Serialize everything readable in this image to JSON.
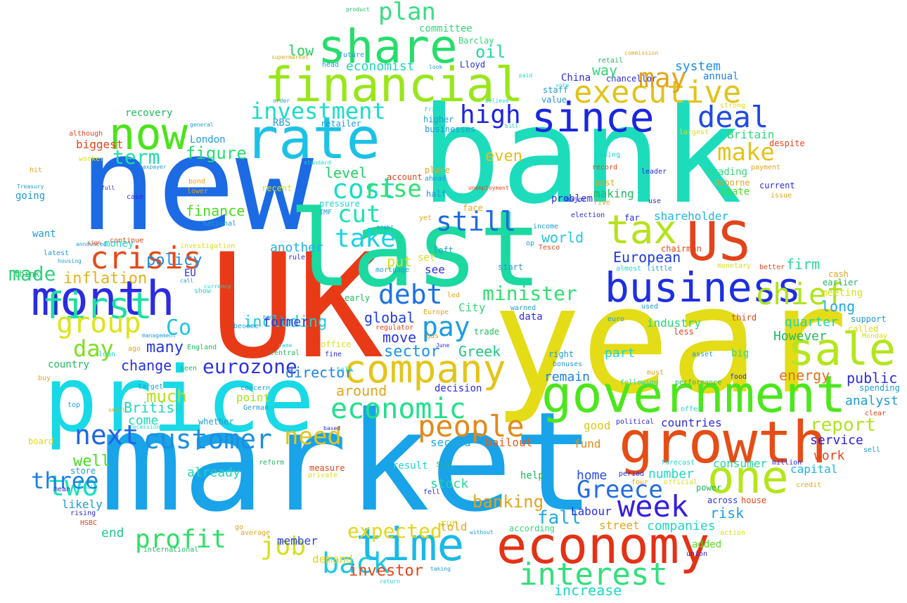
{
  "words": [
    {
      "text": "bank",
      "color": "#1cdcbc"
    },
    {
      "text": "year",
      "color": "#e3dc16"
    },
    {
      "text": "market",
      "color": "#19a3e8"
    },
    {
      "text": "new",
      "color": "#1c6ae4"
    },
    {
      "text": "UK",
      "color": "#e83a17"
    },
    {
      "text": "price",
      "color": "#19d9e6"
    },
    {
      "text": "last",
      "color": "#1bd9a0"
    },
    {
      "text": "government",
      "color": "#4de61d"
    },
    {
      "text": "growth",
      "color": "#e54d17"
    },
    {
      "text": "economy",
      "color": "#e33217"
    },
    {
      "text": "company",
      "color": "#e3c51a"
    },
    {
      "text": "financial",
      "color": "#9ae61b"
    },
    {
      "text": "business",
      "color": "#1d2fdf"
    },
    {
      "text": "month",
      "color": "#2b2cdf"
    },
    {
      "text": "rate",
      "color": "#1cc1e6"
    },
    {
      "text": "share",
      "color": "#27dd6c"
    },
    {
      "text": "since",
      "color": "#1b27dc"
    },
    {
      "text": "now",
      "color": "#4ce31b"
    },
    {
      "text": "one",
      "color": "#b4e619"
    },
    {
      "text": "time",
      "color": "#1ab9e6"
    },
    {
      "text": "sale",
      "color": "#b4e61b"
    },
    {
      "text": "US",
      "color": "#e3431a"
    },
    {
      "text": "tax",
      "color": "#b6e21b"
    },
    {
      "text": "executive",
      "color": "#e3c21a"
    },
    {
      "text": "interest",
      "color": "#31e07b"
    },
    {
      "text": "customer",
      "color": "#1c8fdf"
    },
    {
      "text": "week",
      "color": "#3520df"
    },
    {
      "text": "people",
      "color": "#e28a1c"
    },
    {
      "text": "economic",
      "color": "#21e08a"
    },
    {
      "text": "first",
      "color": "#1ddfa3"
    },
    {
      "text": "crisis",
      "color": "#e34a1a"
    },
    {
      "text": "deal",
      "color": "#1f4ae3"
    },
    {
      "text": "Greece",
      "color": "#1f6ce3"
    },
    {
      "text": "profit",
      "color": "#30dd67"
    },
    {
      "text": "investment",
      "color": "#1cddc5"
    },
    {
      "text": "chief",
      "color": "#ace41a"
    },
    {
      "text": "group",
      "color": "#dde41a"
    },
    {
      "text": "debt",
      "color": "#1b73e3"
    },
    {
      "text": "two",
      "color": "#1ae2c0"
    },
    {
      "text": "next",
      "color": "#1f66e6"
    },
    {
      "text": "eurozone",
      "color": "#2d35df"
    },
    {
      "text": "cost",
      "color": "#1bdcc8"
    },
    {
      "text": "pay",
      "color": "#1a9ce3"
    },
    {
      "text": "need",
      "color": "#e3c51b"
    },
    {
      "text": "plan",
      "color": "#3bdc84"
    },
    {
      "text": "high",
      "color": "#1e23df"
    },
    {
      "text": "make",
      "color": "#e4c31a"
    },
    {
      "text": "take",
      "color": "#1ad2e3"
    },
    {
      "text": "may",
      "color": "#e3a51b"
    },
    {
      "text": "back",
      "color": "#1fc6e3"
    },
    {
      "text": "still",
      "color": "#1f68e3"
    },
    {
      "text": "cut",
      "color": "#1ae2b2"
    },
    {
      "text": "rise",
      "color": "#31df72"
    },
    {
      "text": "day",
      "color": "#7ddf1d"
    },
    {
      "text": "job",
      "color": "#d8e01b"
    },
    {
      "text": "Co",
      "color": "#1cc5e1"
    },
    {
      "text": "report",
      "color": "#afe31b"
    },
    {
      "text": "banking",
      "color": "#e3a31b"
    },
    {
      "text": "term",
      "color": "#1ae2a8"
    },
    {
      "text": "minister",
      "color": "#33df6e"
    },
    {
      "text": "three",
      "color": "#1d7fe5"
    },
    {
      "text": "figure",
      "color": "#25df75"
    },
    {
      "text": "well",
      "color": "#45df1d"
    },
    {
      "text": "expected",
      "color": "#e3d61a"
    },
    {
      "text": "much",
      "color": "#b6e01b"
    },
    {
      "text": "fall",
      "color": "#1fa9e3"
    },
    {
      "text": "world",
      "color": "#23c7e1"
    },
    {
      "text": "made",
      "color": "#2dd27c"
    },
    {
      "text": "oil",
      "color": "#1fd7a5"
    },
    {
      "text": "low",
      "color": "#1fcf5e"
    },
    {
      "text": "economist",
      "color": "#1ad8b7"
    },
    {
      "text": "even",
      "color": "#e3be1b"
    },
    {
      "text": "inflation",
      "color": "#e3b31b"
    },
    {
      "text": "sector",
      "color": "#1a93e3"
    },
    {
      "text": "change",
      "color": "#2431df"
    },
    {
      "text": "many",
      "color": "#2538df"
    },
    {
      "text": "British",
      "color": "#21d3c0"
    },
    {
      "text": "level",
      "color": "#1fcf5e"
    },
    {
      "text": "director",
      "color": "#1c84df"
    },
    {
      "text": "global",
      "color": "#1f3edf"
    },
    {
      "text": "move",
      "color": "#2e36df"
    },
    {
      "text": "put",
      "color": "#d6e01b"
    },
    {
      "text": "Greek",
      "color": "#1fc680"
    },
    {
      "text": "including",
      "color": "#1fcbd9"
    },
    {
      "text": "policy",
      "color": "#1f8fe3"
    },
    {
      "text": "finance",
      "color": "#4ade1c"
    },
    {
      "text": "another",
      "color": "#1fb1e3"
    },
    {
      "text": "former",
      "color": "#2a3bdf"
    },
    {
      "text": "around",
      "color": "#e3a51b"
    },
    {
      "text": "second",
      "color": "#1fa8e1"
    },
    {
      "text": "bailout",
      "color": "#e35f1a"
    },
    {
      "text": "remain",
      "color": "#1f7fe3"
    },
    {
      "text": "European",
      "color": "#1f3bdf"
    },
    {
      "text": "firm",
      "color": "#26d8a0"
    },
    {
      "text": "long",
      "color": "#1fa8e3"
    },
    {
      "text": "quarter",
      "color": "#1fd6a6"
    },
    {
      "text": "However",
      "color": "#1fba5f"
    },
    {
      "text": "industry",
      "color": "#23d776"
    },
    {
      "text": "energy",
      "color": "#e36f1a"
    },
    {
      "text": "public",
      "color": "#2b2bdf"
    },
    {
      "text": "analyst",
      "color": "#1f9bd6"
    },
    {
      "text": "countries",
      "color": "#2a2adf"
    },
    {
      "text": "service",
      "color": "#2d20df"
    },
    {
      "text": "work",
      "color": "#e3451a"
    },
    {
      "text": "capital",
      "color": "#1fb4e3"
    },
    {
      "text": "consumer",
      "color": "#1fd69e"
    },
    {
      "text": "number",
      "color": "#1fd6cb"
    },
    {
      "text": "home",
      "color": "#2a4edf"
    },
    {
      "text": "Labour",
      "color": "#2c2ddf"
    },
    {
      "text": "risk",
      "color": "#1f9de3"
    },
    {
      "text": "companies",
      "color": "#1fd6c4"
    },
    {
      "text": "street",
      "color": "#e3a51b"
    },
    {
      "text": "added",
      "color": "#5bdf1d"
    },
    {
      "text": "fund",
      "color": "#e38a1b"
    },
    {
      "text": "good",
      "color": "#dfc51b"
    },
    {
      "text": "point",
      "color": "#a7de1d"
    },
    {
      "text": "come",
      "color": "#1fd6b8"
    },
    {
      "text": "stock",
      "color": "#1fd6a0"
    },
    {
      "text": "end",
      "color": "#1fca88"
    },
    {
      "text": "member",
      "color": "#2341df"
    },
    {
      "text": "investor",
      "color": "#e3451a"
    },
    {
      "text": "increase",
      "color": "#1ad8c3"
    },
    {
      "text": "demand",
      "color": "#e3d61a"
    },
    {
      "text": "system",
      "color": "#1f8fe3"
    },
    {
      "text": "annual",
      "color": "#1f7fe3"
    },
    {
      "text": "Britain",
      "color": "#33d678"
    },
    {
      "text": "trading",
      "color": "#33d678"
    },
    {
      "text": "Osborne",
      "color": "#e3a51b"
    },
    {
      "text": "state",
      "color": "#4ade1c"
    },
    {
      "text": "shareholder",
      "color": "#1fb4e3"
    },
    {
      "text": "chairman",
      "color": "#e3451a"
    },
    {
      "text": "earlier",
      "color": "#1fba5f"
    },
    {
      "text": "meeting",
      "color": "#d6e01b"
    },
    {
      "text": "support",
      "color": "#1f9bd6"
    },
    {
      "text": "called",
      "color": "#d6e01b"
    },
    {
      "text": "Monday",
      "color": "#d6e01b"
    },
    {
      "text": "spending",
      "color": "#1f9bd6"
    },
    {
      "text": "clear",
      "color": "#e3451a"
    },
    {
      "text": "sell",
      "color": "#1f9bd6"
    },
    {
      "text": "million",
      "color": "#2b2bdf"
    },
    {
      "text": "credit",
      "color": "#e3a51b"
    },
    {
      "text": "house",
      "color": "#e3451a"
    },
    {
      "text": "across",
      "color": "#2b2bdf"
    },
    {
      "text": "power",
      "color": "#1fba5f"
    },
    {
      "text": "official",
      "color": "#d6e01b"
    },
    {
      "text": "four",
      "color": "#e3a51b"
    },
    {
      "text": "period",
      "color": "#2b2bdf"
    },
    {
      "text": "forecast",
      "color": "#1fd6cb"
    },
    {
      "text": "offer",
      "color": "#1fd6cb"
    },
    {
      "text": "must",
      "color": "#e3a51b"
    },
    {
      "text": "performance",
      "color": "#1fba5f"
    },
    {
      "text": "political",
      "color": "#2b2bdf"
    },
    {
      "text": "following",
      "color": "#1fd6cb"
    },
    {
      "text": "food",
      "color": "#2b2bdf"
    },
    {
      "text": "asset",
      "color": "#1f9bd6"
    },
    {
      "text": "right",
      "color": "#1f9bd6"
    },
    {
      "text": "bonuses",
      "color": "#1f9bd6"
    },
    {
      "text": "less",
      "color": "#e3451a"
    },
    {
      "text": "euro",
      "color": "#1f9bd6"
    },
    {
      "text": "third",
      "color": "#e3451a"
    },
    {
      "text": "big",
      "color": "#33d678"
    },
    {
      "text": "used",
      "color": "#1f9bd6"
    },
    {
      "text": "almost",
      "color": "#1fd6cb"
    },
    {
      "text": "little",
      "color": "#1f9bd6"
    },
    {
      "text": "monetary",
      "color": "#d6e01b"
    },
    {
      "text": "better",
      "color": "#e3451a"
    },
    {
      "text": "cash",
      "color": "#e3a51b"
    },
    {
      "text": "issue",
      "color": "#e3a51b"
    },
    {
      "text": "current",
      "color": "#2b2bdf"
    },
    {
      "text": "payment",
      "color": "#e3a51b"
    },
    {
      "text": "despite",
      "color": "#e3451a"
    },
    {
      "text": "largest",
      "color": "#d6e01b"
    },
    {
      "text": "strong",
      "color": "#d6e01b"
    },
    {
      "text": "leader",
      "color": "#2b2bdf"
    },
    {
      "text": "thing",
      "color": "#1fd6cb"
    },
    {
      "text": "record",
      "color": "#e3451a"
    },
    {
      "text": "past",
      "color": "#e3a51b"
    },
    {
      "text": "making",
      "color": "#1fba5f"
    },
    {
      "text": "five",
      "color": "#e3a51b"
    },
    {
      "text": "far",
      "color": "#2b2bdf"
    },
    {
      "text": "use",
      "color": "#2b2bdf"
    },
    {
      "text": "election",
      "color": "#2b2bdf"
    },
    {
      "text": "major",
      "color": "#2b2bdf"
    },
    {
      "text": "problem",
      "color": "#2b2bdf"
    },
    {
      "text": "China",
      "color": "#2b2bdf"
    },
    {
      "text": "staff",
      "color": "#1f9bd6"
    },
    {
      "text": "value",
      "color": "#1f9bd6"
    },
    {
      "text": "chancellor",
      "color": "#2b2bdf"
    },
    {
      "text": "retail",
      "color": "#1fba5f"
    },
    {
      "text": "commission",
      "color": "#e3a51b"
    },
    {
      "text": "paid",
      "color": "#1fd6cb"
    },
    {
      "text": "vote",
      "color": "#1fd6cb"
    },
    {
      "text": "bill",
      "color": "#1fd6cb"
    },
    {
      "text": "believe",
      "color": "#1fd6cb"
    },
    {
      "text": "Friday",
      "color": "#1fd6cb"
    },
    {
      "text": "higher",
      "color": "#1f9bd6"
    },
    {
      "text": "businesses",
      "color": "#1f9bd6"
    },
    {
      "text": "unemployment",
      "color": "#e3451a"
    },
    {
      "text": "place",
      "color": "#e3a51b"
    },
    {
      "text": "ahead",
      "color": "#1f9bd6"
    },
    {
      "text": "half",
      "color": "#1f9bd6"
    },
    {
      "text": "face",
      "color": "#e3a51b"
    },
    {
      "text": "income",
      "color": "#1f9bd6"
    },
    {
      "text": "op",
      "color": "#1f9bd6"
    },
    {
      "text": "Tesco",
      "color": "#e3451a"
    },
    {
      "text": "start",
      "color": "#1f9bd6"
    },
    {
      "text": "left",
      "color": "#1f9bd6"
    },
    {
      "text": "set",
      "color": "#d6e01b"
    },
    {
      "text": "yet",
      "color": "#e3a51b"
    },
    {
      "text": "see",
      "color": "#2b2bdf"
    },
    {
      "text": "led",
      "color": "#e3a51b"
    },
    {
      "text": "Europe",
      "color": "#e3a51b"
    },
    {
      "text": "City",
      "color": "#33d678"
    },
    {
      "text": "data",
      "color": "#2b2bdf"
    },
    {
      "text": "warned",
      "color": "#1f9bd6"
    },
    {
      "text": "trade",
      "color": "#1fba5f"
    },
    {
      "text": "gas",
      "color": "#e3a51b"
    },
    {
      "text": "June",
      "color": "#2b2bdf"
    },
    {
      "text": "part",
      "color": "#1fd6cb"
    },
    {
      "text": "decision",
      "color": "#2b2bdf"
    },
    {
      "text": "six",
      "color": "#1fba5f"
    },
    {
      "text": "help",
      "color": "#1fba5f"
    },
    {
      "text": "fell",
      "color": "#2b2bdf"
    },
    {
      "text": "run",
      "color": "#d6e01b"
    },
    {
      "text": "told",
      "color": "#e3a51b"
    },
    {
      "text": "according",
      "color": "#33d678"
    },
    {
      "text": "without",
      "color": "#1f9bd6"
    },
    {
      "text": "action",
      "color": "#d6e01b"
    },
    {
      "text": "union",
      "color": "#2b2bdf"
    },
    {
      "text": "taking",
      "color": "#1f9bd6"
    },
    {
      "text": "return",
      "color": "#1fd6cb"
    },
    {
      "text": "result",
      "color": "#1fd6cb"
    },
    {
      "text": "mortgage",
      "color": "#1f9bd6"
    },
    {
      "text": "early",
      "color": "#1fba5f"
    },
    {
      "text": "regulator",
      "color": "#e3451a"
    },
    {
      "text": "office",
      "color": "#d6e01b"
    },
    {
      "text": "fine",
      "color": "#2b2bdf"
    },
    {
      "text": "talk",
      "color": "#1fd6cb"
    },
    {
      "text": "based",
      "color": "#2b2bdf"
    },
    {
      "text": "measure",
      "color": "#e3451a"
    },
    {
      "text": "private",
      "color": "#d6e01b"
    },
    {
      "text": "reform",
      "color": "#1fba5f"
    },
    {
      "text": "already",
      "color": "#1fd6b8"
    },
    {
      "text": "German",
      "color": "#1f9bd6"
    },
    {
      "text": "concern",
      "color": "#1f9bd6"
    },
    {
      "text": "whether",
      "color": "#1f9bd6"
    },
    {
      "text": "seen",
      "color": "#1fba5f"
    },
    {
      "text": "target",
      "color": "#1f9bd6"
    },
    {
      "text": "small",
      "color": "#e3a51b"
    },
    {
      "text": "top",
      "color": "#1f9bd6"
    },
    {
      "text": "recession",
      "color": "#1fd6cb"
    },
    {
      "text": "board",
      "color": "#e3d61a"
    },
    {
      "text": "buy",
      "color": "#e3a51b"
    },
    {
      "text": "country",
      "color": "#1fba5f"
    },
    {
      "text": "England",
      "color": "#1fba5f"
    },
    {
      "text": "management",
      "color": "#1f9bd6"
    },
    {
      "text": "ago",
      "color": "#e3a51b"
    },
    {
      "text": "loan",
      "color": "#1fd6cb"
    },
    {
      "text": "EU",
      "color": "#2b2bdf"
    },
    {
      "text": "call",
      "color": "#1f9bd6"
    },
    {
      "text": "show",
      "color": "#1fd6cb"
    },
    {
      "text": "currency",
      "color": "#1fd6cb"
    },
    {
      "text": "bank's",
      "color": "#1f9bd6"
    },
    {
      "text": "become",
      "color": "#1f9bd6"
    },
    {
      "text": "came",
      "color": "#1fd6cb"
    },
    {
      "text": "central",
      "color": "#1fba5f"
    },
    {
      "text": "rule",
      "color": "#2b2bdf"
    },
    {
      "text": "investigation",
      "color": "#d6e01b"
    },
    {
      "text": "national",
      "color": "#1f9bd6"
    },
    {
      "text": "pressure",
      "color": "#1fd6cb"
    },
    {
      "text": "IMF",
      "color": "#1f9bd6"
    },
    {
      "text": "might",
      "color": "#1f9bd6"
    },
    {
      "text": "account",
      "color": "#e3451a"
    },
    {
      "text": "recent",
      "color": "#d6e01b"
    },
    {
      "text": "RBS",
      "color": "#1f9bd6"
    },
    {
      "text": "retailer",
      "color": "#1f9bd6"
    },
    {
      "text": "standard",
      "color": "#1fd6cb"
    },
    {
      "text": "London",
      "color": "#1f9bd6"
    },
    {
      "text": "bond",
      "color": "#e3a51b"
    },
    {
      "text": "lower",
      "color": "#e3a51b"
    },
    {
      "text": "taxpayer",
      "color": "#1f9bd6"
    },
    {
      "text": "worker",
      "color": "#d6e01b"
    },
    {
      "text": "biggest",
      "color": "#e3451a"
    },
    {
      "text": "although",
      "color": "#e3451a"
    },
    {
      "text": "general",
      "color": "#1f9bd6"
    },
    {
      "text": "recovery",
      "color": "#1fba5f"
    },
    {
      "text": "hit",
      "color": "#e3a51b"
    },
    {
      "text": "Treasury",
      "color": "#1f9bd6"
    },
    {
      "text": "going",
      "color": "#1f9bd6"
    },
    {
      "text": "full",
      "color": "#2b2bdf"
    },
    {
      "text": "case",
      "color": "#2b2bdf"
    },
    {
      "text": "money",
      "color": "#1fd6cb"
    },
    {
      "text": "continue",
      "color": "#e3451a"
    },
    {
      "text": "announced",
      "color": "#1f9bd6"
    },
    {
      "text": "want",
      "color": "#1f9bd6"
    },
    {
      "text": "sign",
      "color": "#e3451a"
    },
    {
      "text": "latest",
      "color": "#1f9bd6"
    },
    {
      "text": "housing",
      "color": "#1f9bd6"
    },
    {
      "text": "think",
      "color": "#1fba5f"
    },
    {
      "text": "mean",
      "color": "#2b2bdf"
    },
    {
      "text": "real",
      "color": "#1fd6cb"
    },
    {
      "text": "likely",
      "color": "#1f9bd6"
    },
    {
      "text": "rising",
      "color": "#2b2bdf"
    },
    {
      "text": "HSBC",
      "color": "#e3451a"
    },
    {
      "text": "store",
      "color": "#1f9bd6"
    },
    {
      "text": "go",
      "color": "#e3a51b"
    },
    {
      "text": "average",
      "color": "#e3a51b"
    },
    {
      "text": "international",
      "color": "#1fba5f"
    },
    {
      "text": "head",
      "color": "#1f9bd6"
    },
    {
      "text": "supermarket",
      "color": "#e3a51b"
    },
    {
      "text": "order",
      "color": "#1f9bd6"
    },
    {
      "text": "future",
      "color": "#1f9bd6"
    },
    {
      "text": "product",
      "color": "#1fba5f"
    },
    {
      "text": "committee",
      "color": "#33d678"
    },
    {
      "text": "Barclay",
      "color": "#33d678"
    },
    {
      "text": "look",
      "color": "#1f9bd6"
    },
    {
      "text": "Lloyd",
      "color": "#2b2bdf"
    },
    {
      "text": "way",
      "color": "#33d678"
    }
  ]
}
